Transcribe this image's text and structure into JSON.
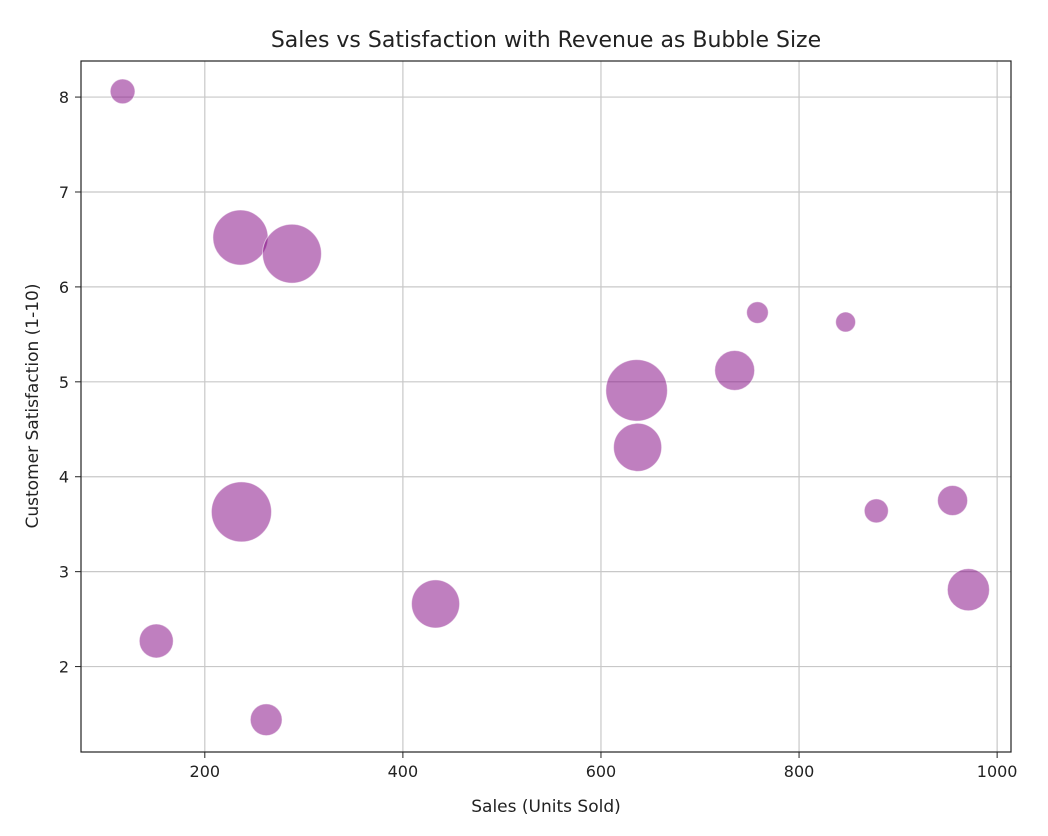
{
  "chart_data": {
    "type": "scatter",
    "title": "Sales vs Satisfaction with Revenue as Bubble Size",
    "xlabel": "Sales (Units Sold)",
    "ylabel": "Customer Satisfaction (1-10)",
    "xlim": [
      75,
      1014
    ],
    "ylim": [
      1.1,
      8.38
    ],
    "xticks": [
      200,
      400,
      600,
      800,
      1000
    ],
    "yticks": [
      2,
      3,
      4,
      5,
      6,
      7,
      8
    ],
    "grid": true,
    "color": "#800080",
    "alpha": 0.5,
    "points": [
      {
        "x": 117,
        "y": 8.06,
        "size": 1.7
      },
      {
        "x": 236,
        "y": 6.52,
        "size": 8.4
      },
      {
        "x": 288,
        "y": 6.35,
        "size": 9.6
      },
      {
        "x": 758,
        "y": 5.73,
        "size": 1.3
      },
      {
        "x": 847,
        "y": 5.63,
        "size": 1.1
      },
      {
        "x": 636,
        "y": 4.91,
        "size": 10.5
      },
      {
        "x": 735,
        "y": 5.12,
        "size": 4.4
      },
      {
        "x": 637,
        "y": 4.31,
        "size": 6.4
      },
      {
        "x": 237,
        "y": 3.63,
        "size": 10.0
      },
      {
        "x": 878,
        "y": 3.64,
        "size": 1.6
      },
      {
        "x": 955,
        "y": 3.75,
        "size": 2.5
      },
      {
        "x": 971,
        "y": 2.81,
        "size": 4.9
      },
      {
        "x": 433,
        "y": 2.66,
        "size": 6.4
      },
      {
        "x": 151,
        "y": 2.27,
        "size": 3.2
      },
      {
        "x": 262,
        "y": 1.44,
        "size": 2.8
      }
    ]
  }
}
